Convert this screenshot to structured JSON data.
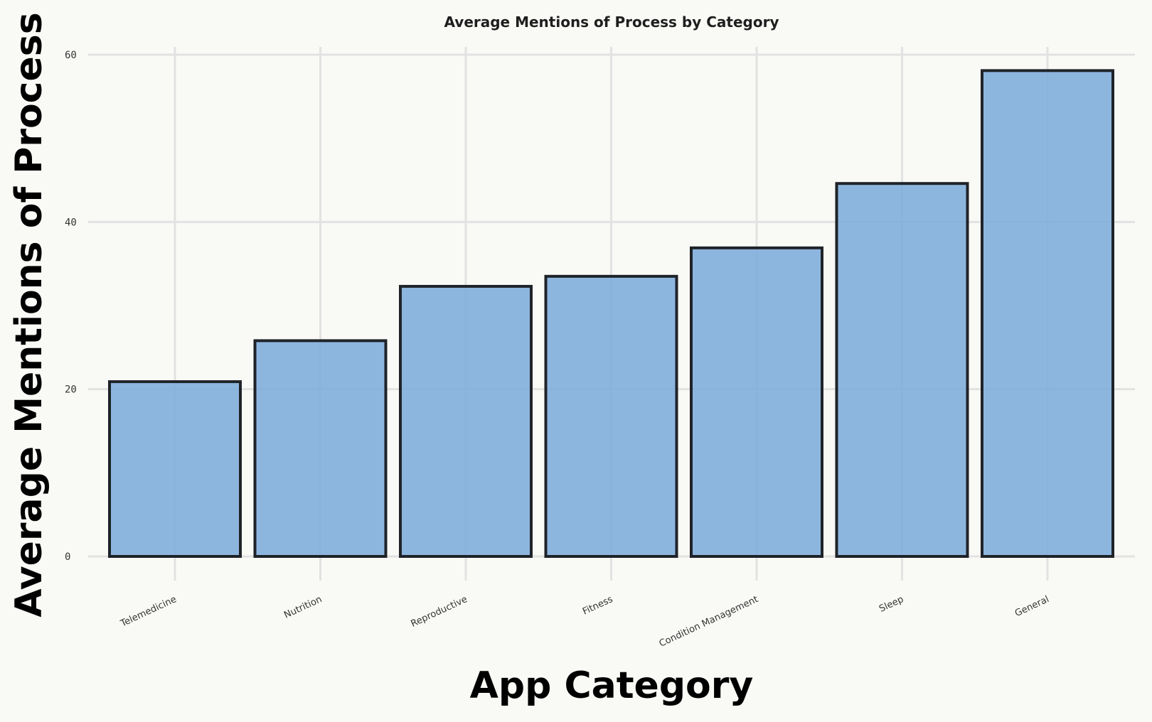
{
  "chart_data": {
    "type": "bar",
    "title": "Average Mentions of Process by Category",
    "xlabel": "App Category",
    "ylabel": "Average Mentions of Process",
    "categories": [
      "Telemedicine",
      "Nutrition",
      "Reproductive",
      "Fitness",
      "Condition Management",
      "Sleep",
      "General"
    ],
    "values": [
      20.9,
      25.8,
      32.3,
      33.5,
      36.9,
      44.6,
      58.1
    ],
    "ylim": [
      0,
      60
    ],
    "yticks": [
      0,
      20,
      40,
      60
    ],
    "grid": true,
    "legend": "none",
    "colors": {
      "bar_fill": "#7aaadb",
      "bar_edge": "#1f2328",
      "grid": "#e2e2e2",
      "background": "#f9f9f6"
    }
  }
}
